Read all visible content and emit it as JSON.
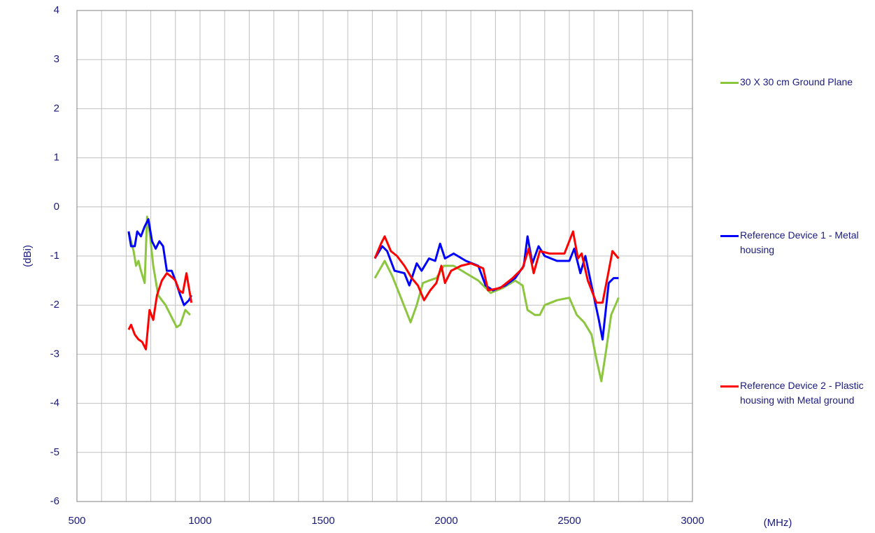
{
  "chart_data": {
    "type": "line",
    "x_label": "(MHz)",
    "y_label": "(dBi)",
    "xlim": [
      500,
      3000
    ],
    "xticks": [
      500,
      1000,
      1500,
      2000,
      2500,
      3000
    ],
    "xgrid": [
      500,
      600,
      700,
      800,
      900,
      1000,
      1100,
      1200,
      1300,
      1400,
      1500,
      1600,
      1700,
      1800,
      1900,
      2000,
      2100,
      2200,
      2300,
      2400,
      2500,
      2600,
      2700,
      2800,
      2900,
      3000
    ],
    "ylim": [
      -6,
      4
    ],
    "yticks": [
      -6,
      -5,
      -4,
      -3,
      -2,
      -1,
      0,
      1,
      2,
      3,
      4
    ],
    "grid": true,
    "legend": "right",
    "series": [
      {
        "name": "30 X 30 cm Ground Plane",
        "color": "#8cc63f",
        "x": [
          710,
          730,
          740,
          750,
          760,
          775,
          785,
          795,
          810,
          830,
          860,
          880,
          905,
          920,
          940,
          960,
          null,
          1710,
          1750,
          1780,
          1820,
          1855,
          1880,
          1905,
          1930,
          1960,
          1990,
          2030,
          2080,
          2130,
          2180,
          2230,
          2280,
          2310,
          2330,
          2360,
          2380,
          2400,
          2450,
          2500,
          2530,
          2560,
          2590,
          2610,
          2630,
          2650,
          2670,
          2700
        ],
        "values": [
          -0.5,
          -0.9,
          -1.2,
          -1.1,
          -1.3,
          -1.55,
          -0.2,
          -0.5,
          -1.2,
          -1.8,
          -2.0,
          -2.2,
          -2.45,
          -2.4,
          -2.1,
          -2.2,
          null,
          -1.45,
          -1.1,
          -1.4,
          -1.9,
          -2.35,
          -2.0,
          -1.55,
          -1.5,
          -1.45,
          -1.2,
          -1.2,
          -1.35,
          -1.5,
          -1.75,
          -1.65,
          -1.5,
          -1.6,
          -2.1,
          -2.2,
          -2.2,
          -2.0,
          -1.9,
          -1.85,
          -2.2,
          -2.35,
          -2.6,
          -3.1,
          -3.55,
          -2.9,
          -2.2,
          -1.85
        ]
      },
      {
        "name": "Reference Device 1 - Metal housing",
        "color": "#0000ff",
        "x": [
          710,
          720,
          735,
          745,
          760,
          775,
          790,
          805,
          820,
          835,
          850,
          865,
          885,
          900,
          920,
          935,
          955,
          965,
          null,
          1710,
          1740,
          1760,
          1790,
          1830,
          1850,
          1880,
          1900,
          1930,
          1955,
          1975,
          1995,
          2030,
          2080,
          2130,
          2160,
          2190,
          2240,
          2280,
          2315,
          2330,
          2350,
          2375,
          2400,
          2450,
          2500,
          2520,
          2545,
          2565,
          2590,
          2620,
          2635,
          2660,
          2680,
          2700
        ],
        "values": [
          -0.5,
          -0.8,
          -0.8,
          -0.5,
          -0.6,
          -0.4,
          -0.25,
          -0.7,
          -0.85,
          -0.7,
          -0.8,
          -1.3,
          -1.3,
          -1.5,
          -1.8,
          -2.0,
          -1.9,
          -1.8,
          null,
          -1.05,
          -0.8,
          -0.9,
          -1.3,
          -1.35,
          -1.6,
          -1.15,
          -1.3,
          -1.05,
          -1.1,
          -0.75,
          -1.05,
          -0.95,
          -1.1,
          -1.2,
          -1.6,
          -1.7,
          -1.6,
          -1.45,
          -1.2,
          -0.6,
          -1.15,
          -0.8,
          -1.0,
          -1.1,
          -1.1,
          -0.85,
          -1.35,
          -1.0,
          -1.6,
          -2.3,
          -2.7,
          -1.55,
          -1.45,
          -1.45
        ]
      },
      {
        "name": "Reference Device 2 - Plastic housing with Metal ground",
        "color": "#ff0000",
        "x": [
          710,
          720,
          735,
          750,
          765,
          780,
          795,
          810,
          825,
          845,
          865,
          890,
          900,
          915,
          930,
          945,
          960,
          965,
          null,
          1710,
          1735,
          1750,
          1775,
          1800,
          1830,
          1860,
          1885,
          1910,
          1935,
          1960,
          1980,
          1995,
          2020,
          2060,
          2100,
          2150,
          2170,
          2220,
          2270,
          2310,
          2335,
          2355,
          2380,
          2420,
          2480,
          2515,
          2535,
          2550,
          2575,
          2610,
          2635,
          2660,
          2675,
          2700
        ],
        "values": [
          -2.5,
          -2.4,
          -2.6,
          -2.7,
          -2.75,
          -2.9,
          -2.1,
          -2.3,
          -1.8,
          -1.5,
          -1.35,
          -1.45,
          -1.5,
          -1.7,
          -1.75,
          -1.35,
          -1.8,
          -1.95,
          null,
          -1.05,
          -0.75,
          -0.6,
          -0.9,
          -1.0,
          -1.2,
          -1.45,
          -1.6,
          -1.9,
          -1.7,
          -1.55,
          -1.2,
          -1.55,
          -1.3,
          -1.2,
          -1.15,
          -1.25,
          -1.7,
          -1.65,
          -1.45,
          -1.25,
          -0.85,
          -1.35,
          -0.9,
          -0.95,
          -0.95,
          -0.5,
          -1.05,
          -0.95,
          -1.5,
          -1.95,
          -1.95,
          -1.3,
          -0.9,
          -1.05
        ]
      }
    ]
  }
}
